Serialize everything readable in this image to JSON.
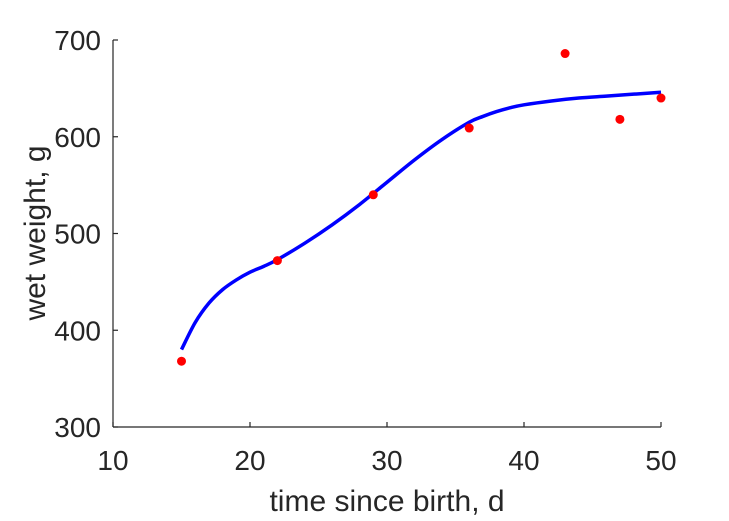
{
  "chart_data": {
    "type": "scatter",
    "xlabel": "time since birth, d",
    "ylabel": "wet weight, g",
    "xlim": [
      10,
      50
    ],
    "ylim": [
      300,
      700
    ],
    "x_ticks": [
      "10",
      "20",
      "30",
      "40",
      "50"
    ],
    "y_ticks": [
      "300",
      "400",
      "500",
      "600",
      "700"
    ],
    "grid": false,
    "series": [
      {
        "kind": "scatter",
        "color": "#ff0000",
        "x": [
          15,
          22,
          29,
          36,
          43,
          47,
          50
        ],
        "y": [
          368,
          472,
          540,
          609,
          686,
          618,
          640
        ]
      },
      {
        "kind": "line",
        "color": "#0000ff",
        "x": [
          15,
          16,
          17,
          18,
          19,
          20,
          21,
          22,
          24,
          26,
          28,
          30,
          32,
          34,
          36,
          37,
          38,
          39,
          40,
          42,
          44,
          46,
          48,
          50
        ],
        "y": [
          380,
          408,
          428,
          442,
          452,
          460,
          466,
          473,
          490,
          509,
          530,
          553,
          576,
          597,
          615,
          621,
          626,
          630,
          633,
          637,
          640,
          642,
          644,
          646
        ]
      }
    ]
  }
}
